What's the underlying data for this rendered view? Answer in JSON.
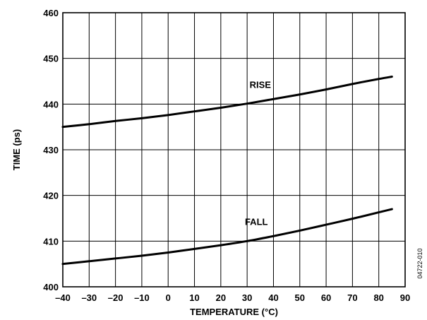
{
  "chart_data": {
    "type": "line",
    "title": "",
    "xlabel": "TEMPERATURE (°C)",
    "ylabel": "TIME (ps)",
    "xlim": [
      -40,
      90
    ],
    "ylim": [
      400,
      460
    ],
    "x_ticks": [
      -40,
      -30,
      -20,
      -10,
      0,
      10,
      20,
      30,
      40,
      50,
      60,
      70,
      80,
      90
    ],
    "x_tick_labels": [
      "–40",
      "–30",
      "–20",
      "–10",
      "0",
      "10",
      "20",
      "30",
      "40",
      "50",
      "60",
      "70",
      "80",
      "90"
    ],
    "y_ticks": [
      400,
      410,
      420,
      430,
      440,
      450,
      460
    ],
    "y_tick_labels": [
      "400",
      "410",
      "420",
      "430",
      "440",
      "450",
      "460"
    ],
    "grid": true,
    "legend": "none",
    "series": [
      {
        "name": "RISE",
        "x": [
          -40,
          -30,
          -20,
          -10,
          0,
          10,
          20,
          30,
          40,
          50,
          60,
          70,
          80,
          85
        ],
        "y": [
          435.0,
          435.6,
          436.3,
          436.9,
          437.6,
          438.4,
          439.2,
          440.1,
          441.1,
          442.1,
          443.2,
          444.4,
          445.5,
          446.0
        ]
      },
      {
        "name": "FALL",
        "x": [
          -40,
          -30,
          -20,
          -10,
          0,
          10,
          20,
          30,
          40,
          50,
          60,
          70,
          80,
          85
        ],
        "y": [
          405.0,
          405.6,
          406.2,
          406.8,
          407.5,
          408.3,
          409.1,
          410.0,
          411.1,
          412.3,
          413.6,
          414.9,
          416.3,
          417.0
        ]
      }
    ],
    "annotations": [
      {
        "text": "RISE",
        "x": 35,
        "y": 443.5
      },
      {
        "text": "FALL",
        "x": 33.5,
        "y": 413.5
      }
    ],
    "figure_id": "04722-010"
  }
}
